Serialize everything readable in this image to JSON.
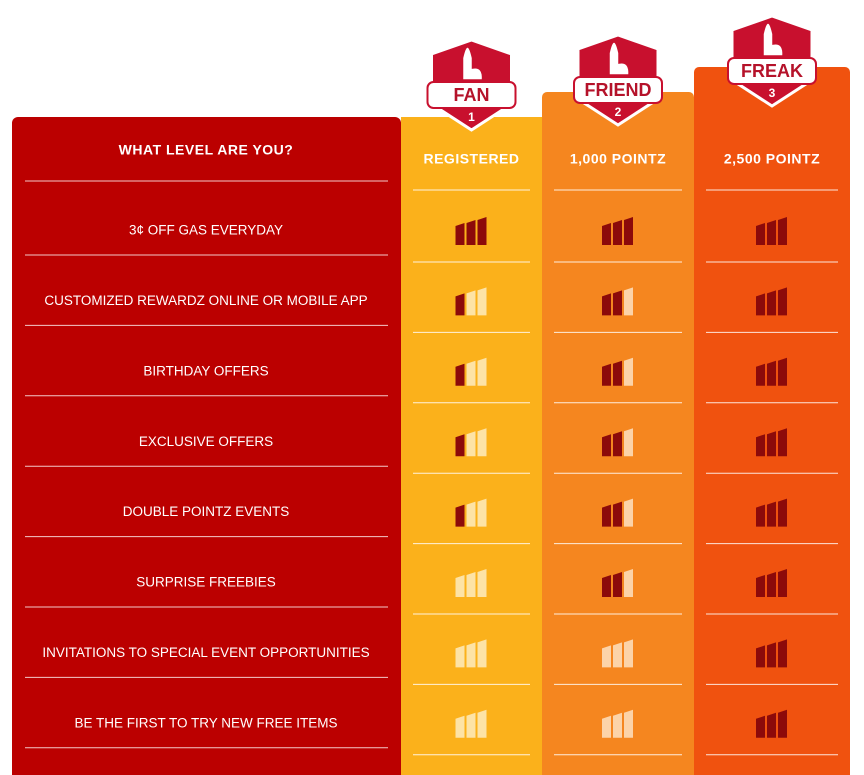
{
  "header": {
    "title": "WHAT LEVEL ARE YOU?"
  },
  "tiers": [
    {
      "name": "FAN",
      "rank": 1,
      "points": "REGISTERED"
    },
    {
      "name": "FRIEND",
      "rank": 2,
      "points": "1,000 POINTZ"
    },
    {
      "name": "FREAK",
      "rank": 3,
      "points": "2,500 POINTZ"
    }
  ],
  "rows": [
    {
      "label": "3¢ OFF GAS EVERYDAY",
      "levels": [
        3,
        3,
        3
      ]
    },
    {
      "label": "CUSTOMIZED REWARDZ ONLINE OR MOBILE APP",
      "levels": [
        1,
        2,
        3
      ]
    },
    {
      "label": "BIRTHDAY OFFERS",
      "levels": [
        1,
        2,
        3
      ]
    },
    {
      "label": "EXCLUSIVE OFFERS",
      "levels": [
        1,
        2,
        3
      ]
    },
    {
      "label": "DOUBLE POINTZ EVENTS",
      "levels": [
        1,
        2,
        3
      ]
    },
    {
      "label": "SURPRISE FREEBIES",
      "levels": [
        0,
        2,
        3
      ]
    },
    {
      "label": "INVITATIONS TO SPECIAL EVENT OPPORTUNITIES",
      "levels": [
        0,
        0,
        3
      ]
    },
    {
      "label": "BE THE FIRST TO TRY NEW FREE ITEMS",
      "levels": [
        0,
        0,
        3
      ]
    }
  ]
}
